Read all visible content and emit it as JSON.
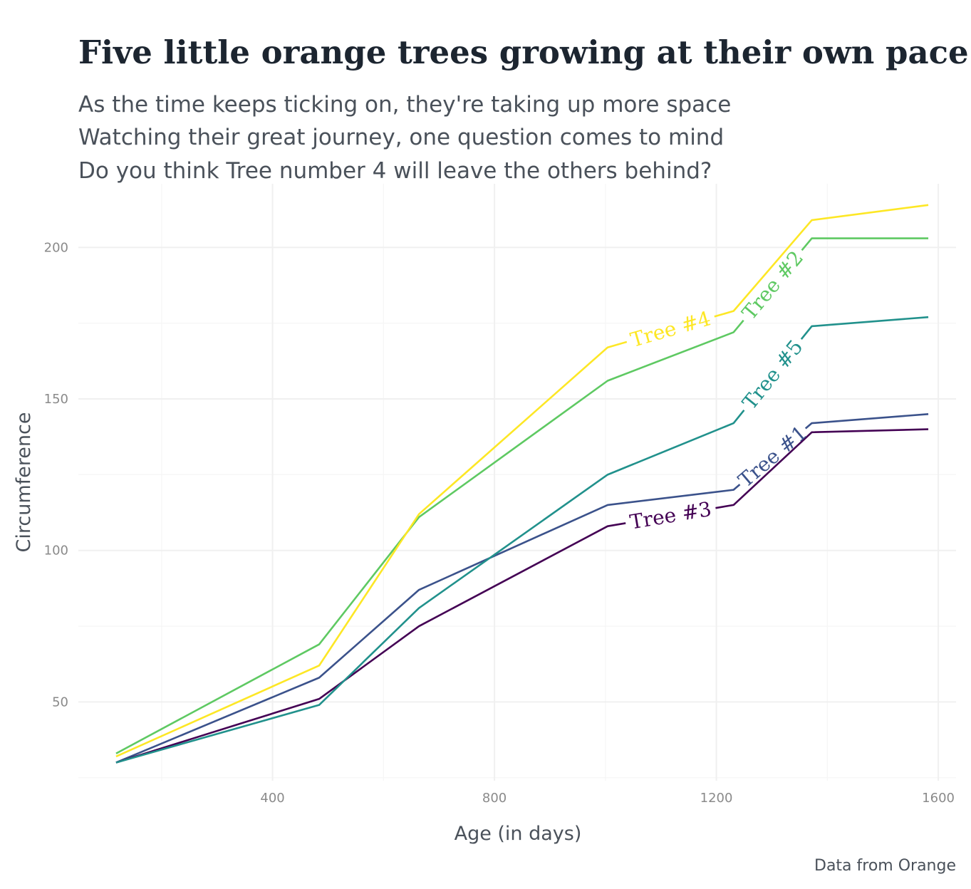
{
  "chart_data": {
    "type": "line",
    "title": "Five little orange trees growing at their own pace",
    "subtitle": [
      "As the time keeps ticking on, they're taking up more space",
      "Watching their great journey, one question comes to mind",
      "Do you think Tree number 4 will leave the others behind?"
    ],
    "xlabel": "Age (in days)",
    "ylabel": "Circumference",
    "caption": "Data from Orange",
    "xlim": [
      50,
      1632
    ],
    "ylim": [
      24,
      221
    ],
    "xticks": [
      400,
      800,
      1200,
      1600
    ],
    "yticks": [
      50,
      100,
      150,
      200
    ],
    "x": [
      118,
      484,
      664,
      1004,
      1231,
      1372,
      1582
    ],
    "grid": true,
    "legend": "none",
    "series": [
      {
        "name": "Tree #1",
        "color": "#3b528b",
        "values": [
          30,
          58,
          87,
          115,
          120,
          142,
          145
        ]
      },
      {
        "name": "Tree #2",
        "color": "#5ec962",
        "values": [
          33,
          69,
          111,
          156,
          172,
          203,
          203
        ]
      },
      {
        "name": "Tree #3",
        "color": "#440154",
        "values": [
          30,
          51,
          75,
          108,
          115,
          139,
          140
        ]
      },
      {
        "name": "Tree #4",
        "color": "#fde725",
        "values": [
          32,
          62,
          112,
          167,
          179,
          209,
          214
        ]
      },
      {
        "name": "Tree #5",
        "color": "#21918c",
        "values": [
          30,
          49,
          81,
          125,
          142,
          174,
          177
        ]
      }
    ]
  }
}
